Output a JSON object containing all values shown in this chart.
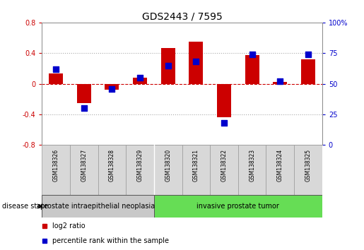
{
  "title": "GDS2443 / 7595",
  "samples": [
    "GSM138326",
    "GSM138327",
    "GSM138328",
    "GSM138329",
    "GSM138320",
    "GSM138321",
    "GSM138322",
    "GSM138323",
    "GSM138324",
    "GSM138325"
  ],
  "log2_ratio": [
    0.13,
    -0.25,
    -0.08,
    0.08,
    0.47,
    0.55,
    -0.44,
    0.37,
    0.02,
    0.32
  ],
  "percentile_rank": [
    62,
    30,
    46,
    55,
    65,
    68,
    18,
    74,
    52,
    74
  ],
  "ylim_left": [
    -0.8,
    0.8
  ],
  "ylim_right": [
    0,
    100
  ],
  "yticks_left": [
    -0.8,
    -0.4,
    0.0,
    0.4,
    0.8
  ],
  "yticks_right": [
    0,
    25,
    50,
    75,
    100
  ],
  "ytick_labels_left": [
    "-0.8",
    "-0.4",
    "0",
    "0.4",
    "0.8"
  ],
  "ytick_labels_right": [
    "0",
    "25",
    "50",
    "75",
    "100%"
  ],
  "bar_color": "#cc0000",
  "dot_color": "#0000cc",
  "bar_width": 0.5,
  "dot_size": 30,
  "group1_label": "prostate intraepithelial neoplasia",
  "group2_label": "invasive prostate tumor",
  "group1_color": "#c8c8c8",
  "group2_color": "#66dd55",
  "group1_count": 4,
  "group2_count": 6,
  "disease_state_label": "disease state",
  "legend_bar_label": "log2 ratio",
  "legend_dot_label": "percentile rank within the sample",
  "zero_line_color": "#cc0000",
  "dot_hline_color": "#aaaaaa",
  "bg_color": "#ffffff",
  "fontsize_title": 10,
  "fontsize_ticks": 7,
  "fontsize_legend": 7,
  "fontsize_group": 7,
  "fontsize_disease": 7,
  "fontsize_sample": 5.5
}
